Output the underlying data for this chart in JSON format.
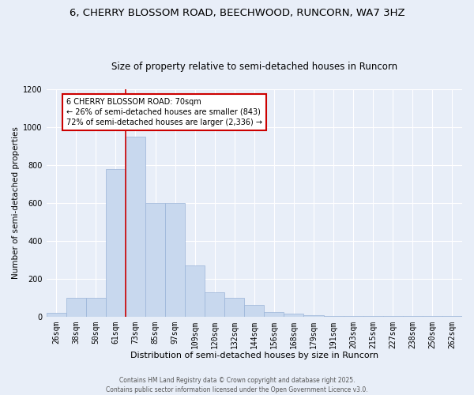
{
  "title1": "6, CHERRY BLOSSOM ROAD, BEECHWOOD, RUNCORN, WA7 3HZ",
  "title2": "Size of property relative to semi-detached houses in Runcorn",
  "xlabel": "Distribution of semi-detached houses by size in Runcorn",
  "ylabel": "Number of semi-detached properties",
  "categories": [
    "26sqm",
    "38sqm",
    "50sqm",
    "61sqm",
    "73sqm",
    "85sqm",
    "97sqm",
    "109sqm",
    "120sqm",
    "132sqm",
    "144sqm",
    "156sqm",
    "168sqm",
    "179sqm",
    "191sqm",
    "203sqm",
    "215sqm",
    "227sqm",
    "238sqm",
    "250sqm",
    "262sqm"
  ],
  "values": [
    20,
    100,
    100,
    780,
    950,
    600,
    600,
    270,
    130,
    100,
    60,
    25,
    15,
    8,
    5,
    4,
    3,
    2,
    2,
    2,
    5
  ],
  "bar_color": "#c8d8ee",
  "bar_edge_color": "#9ab4d8",
  "property_line_color": "#cc0000",
  "property_line_idx": 4,
  "annotation_text": "6 CHERRY BLOSSOM ROAD: 70sqm\n← 26% of semi-detached houses are smaller (843)\n72% of semi-detached houses are larger (2,336) →",
  "annotation_box_facecolor": "#ffffff",
  "annotation_box_edgecolor": "#cc0000",
  "ylim": [
    0,
    1200
  ],
  "yticks": [
    0,
    200,
    400,
    600,
    800,
    1000,
    1200
  ],
  "background_color": "#e8eef8",
  "grid_color": "#ffffff",
  "footer_text": "Contains HM Land Registry data © Crown copyright and database right 2025.\nContains public sector information licensed under the Open Government Licence v3.0.",
  "title1_fontsize": 9.5,
  "title2_fontsize": 8.5,
  "xlabel_fontsize": 8,
  "ylabel_fontsize": 7.5,
  "tick_fontsize": 7,
  "annotation_fontsize": 7,
  "footer_fontsize": 5.5
}
